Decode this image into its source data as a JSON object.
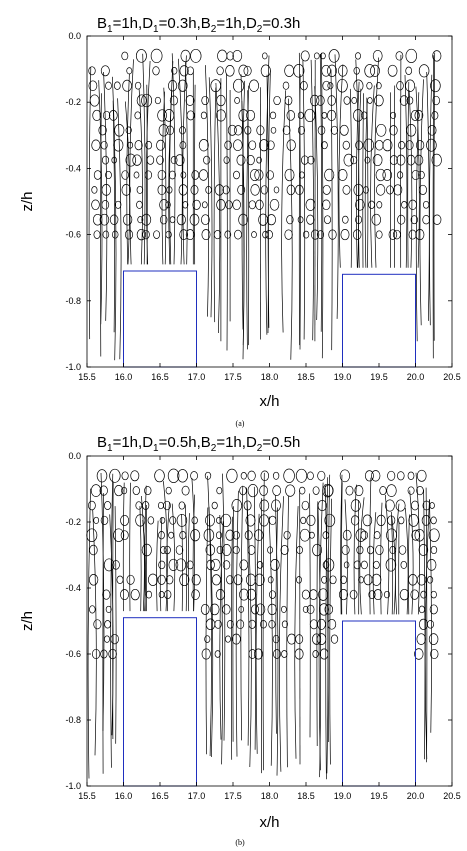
{
  "chart_data": [
    {
      "type": "scatter",
      "panel": "(a)",
      "title_parts": {
        "B1": "B",
        "B1_sub": "1",
        "B1_val": "=1h,",
        "D1": "D",
        "D1_sub": "1",
        "D1_val": "=0.3h,",
        "B2": "B",
        "B2_sub": "2",
        "B2_val": "=1h,",
        "D2": "D",
        "D2_sub": "2",
        "D2_val": "=0.3h"
      },
      "xlabel": "x/h",
      "ylabel": "z/h",
      "xlim": [
        15.5,
        20.5
      ],
      "ylim": [
        -1.0,
        0.0
      ],
      "x_ticks": [
        "15.5",
        "16.0",
        "16.5",
        "17.0",
        "17.5",
        "18.0",
        "18.5",
        "19.0",
        "19.5",
        "20.0",
        "20.5"
      ],
      "y_ticks": [
        "0.0",
        "-0.2",
        "-0.4",
        "-0.6",
        "-0.8",
        "-1.0"
      ],
      "structures": [
        {
          "x0": 16.0,
          "x1": 17.0,
          "top": -0.71
        },
        {
          "x0": 19.0,
          "x1": 20.0,
          "top": -0.72
        }
      ],
      "structure_color": "#1f2fbf",
      "trajectory_color": "#000000",
      "trajectory_columns_x": [
        15.6,
        15.75,
        15.9,
        16.05,
        16.2,
        16.35,
        16.5,
        16.65,
        16.8,
        16.95,
        17.15,
        17.3,
        17.45,
        17.6,
        17.75,
        17.9,
        18.05,
        18.25,
        18.45,
        18.6,
        18.75,
        18.85,
        19.05,
        19.2,
        19.35,
        19.5,
        19.65,
        19.8,
        19.95,
        20.1,
        20.25
      ]
    },
    {
      "type": "scatter",
      "panel": "(b)",
      "title_parts": {
        "B1": "B",
        "B1_sub": "1",
        "B1_val": "=1h,",
        "D1": "D",
        "D1_sub": "1",
        "D1_val": "=0.5h,",
        "B2": "B",
        "B2_sub": "2",
        "B2_val": "=1h,",
        "D2": "D",
        "D2_sub": "2",
        "D2_val": "=0.5h"
      },
      "xlabel": "x/h",
      "ylabel": "z/h",
      "xlim": [
        15.5,
        20.5
      ],
      "ylim": [
        -1.0,
        0.0
      ],
      "x_ticks": [
        "15.5",
        "16.0",
        "16.5",
        "17.0",
        "17.5",
        "18.0",
        "18.5",
        "19.0",
        "19.5",
        "20.0",
        "20.5"
      ],
      "y_ticks": [
        "0.0",
        "-0.2",
        "-0.4",
        "-0.6",
        "-0.8",
        "-1.0"
      ],
      "structures": [
        {
          "x0": 16.0,
          "x1": 17.0,
          "top": -0.49
        },
        {
          "x0": 19.0,
          "x1": 20.0,
          "top": -0.5
        }
      ],
      "structure_color": "#1f2fbf",
      "trajectory_color": "#000000",
      "trajectory_columns_x": [
        15.6,
        15.75,
        15.9,
        16.05,
        16.2,
        16.35,
        16.5,
        16.65,
        16.8,
        16.95,
        17.15,
        17.3,
        17.45,
        17.6,
        17.75,
        17.9,
        18.05,
        18.25,
        18.45,
        18.6,
        18.75,
        18.85,
        19.05,
        19.2,
        19.35,
        19.5,
        19.65,
        19.8,
        19.95,
        20.1,
        20.25
      ]
    }
  ]
}
